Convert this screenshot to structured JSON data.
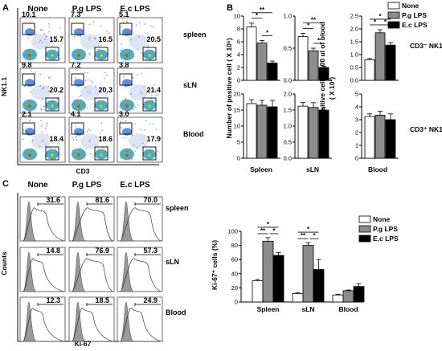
{
  "panel_labels": {
    "a": "A",
    "b": "B",
    "c": "C"
  },
  "panelA": {
    "columns": [
      "None",
      "P.g LPS",
      "E.c LPS"
    ],
    "rows": [
      "spleen",
      "sLN",
      "Blood"
    ],
    "ylabel": "NK1.1",
    "xlabel": "CD3",
    "values": [
      [
        {
          "tl": "10.1",
          "br": "15.7"
        },
        {
          "tl": "7.3",
          "br": "16.5"
        },
        {
          "tl": "5.1",
          "br": "20.5"
        }
      ],
      [
        {
          "tl": "9.8",
          "br": "20.2"
        },
        {
          "tl": "7.2",
          "br": "20.3"
        },
        {
          "tl": "3.8",
          "br": "21.4"
        }
      ],
      [
        {
          "tl": "2.1",
          "br": "18.4"
        },
        {
          "tl": "4.1",
          "br": "18.6"
        },
        {
          "tl": "3.0",
          "br": "17.9"
        }
      ]
    ]
  },
  "panelC_hist": {
    "columns": [
      "None",
      "P.g LPS",
      "E.c LPS"
    ],
    "rows": [
      "spleen",
      "sLN",
      "Blood"
    ],
    "ylabel": "Counts",
    "xlabel": "Ki-67",
    "values": [
      [
        "31.6",
        "81.6",
        "70.0"
      ],
      [
        "14.8",
        "76.9",
        "57.3"
      ],
      [
        "12.3",
        "18.5",
        "24.9"
      ]
    ]
  },
  "legend": [
    "None",
    "P.g LPS",
    "E.c LPS"
  ],
  "colors": {
    "None": "#ffffff",
    "P.g LPS": "#8c8c8c",
    "E.c LPS": "#000000"
  },
  "chart_data": [
    {
      "type": "bar",
      "group": "B-top",
      "tissue": "Spleen",
      "ylabel": "Number of positive cell ( X 10⁶)",
      "ylim": [
        0,
        10
      ],
      "yticks": [
        "0",
        "2",
        "4",
        "6",
        "8",
        "10"
      ],
      "values": [
        8.3,
        5.8,
        2.7
      ],
      "errors": [
        0.6,
        0.4,
        0.3
      ],
      "significance": [
        "*",
        "*",
        "**"
      ]
    },
    {
      "type": "bar",
      "group": "B-top",
      "tissue": "sLN",
      "ylim": [
        0,
        1.0
      ],
      "yticks": [
        "0.0",
        "0.5",
        "1.0"
      ],
      "values": [
        0.68,
        0.46,
        0.2
      ],
      "errors": [
        0.05,
        0.04,
        0.02
      ],
      "significance": [
        "*",
        "*",
        "**"
      ]
    },
    {
      "type": "bar",
      "group": "B-top",
      "tissue": "Blood",
      "ylabel": "Number of positive cell in 100 ul of blood",
      "ylabel2": "( X 10³)",
      "ylim": [
        0,
        2.5
      ],
      "yticks": [
        "0.0",
        "0.5",
        "1.0",
        "1.5",
        "2.0",
        "2.5"
      ],
      "values": [
        0.8,
        1.85,
        1.37
      ],
      "errors": [
        0.05,
        0.12,
        0.1
      ],
      "significance": [
        "*",
        "*",
        "*"
      ],
      "annotation": "CD3⁻ NK1.1⁺"
    },
    {
      "type": "bar",
      "group": "B-bottom",
      "tissue": "Spleen",
      "ylim": [
        0,
        20
      ],
      "yticks": [
        "0",
        "5",
        "10",
        "15",
        "20"
      ],
      "values": [
        17.0,
        16.5,
        16.0
      ],
      "errors": [
        1.2,
        1.5,
        2.0
      ]
    },
    {
      "type": "bar",
      "group": "B-bottom",
      "tissue": "sLN",
      "ylim": [
        0,
        2.0
      ],
      "yticks": [
        "0.0",
        "0.5",
        "1.0",
        "1.5",
        "2.0"
      ],
      "values": [
        1.62,
        1.58,
        1.5
      ],
      "errors": [
        0.12,
        0.15,
        0.08
      ]
    },
    {
      "type": "bar",
      "group": "B-bottom",
      "tissue": "Blood",
      "ylim": [
        0,
        5
      ],
      "yticks": [
        "0",
        "1",
        "2",
        "3",
        "4",
        "5"
      ],
      "values": [
        3.25,
        3.35,
        3.0
      ],
      "errors": [
        0.2,
        0.3,
        0.45
      ],
      "annotation": "CD3⁺ NK1.1⁻"
    },
    {
      "type": "bar",
      "group": "C",
      "ylabel": "Ki-67⁺ cells (%)",
      "ylim": [
        0,
        100
      ],
      "yticks": [
        "0",
        "20",
        "40",
        "60",
        "80",
        "100"
      ],
      "categories": [
        "Spleen",
        "sLN",
        "Blood"
      ],
      "series": [
        {
          "name": "None",
          "values": [
            30,
            12,
            10
          ],
          "errors": [
            2,
            1,
            1
          ]
        },
        {
          "name": "P.g LPS",
          "values": [
            86,
            80,
            16
          ],
          "errors": [
            5,
            4,
            1
          ]
        },
        {
          "name": "E.c LPS",
          "values": [
            66,
            46,
            22
          ],
          "errors": [
            4,
            14,
            4
          ]
        }
      ],
      "significance": [
        "**",
        "*",
        "*",
        "**",
        "*",
        "*"
      ]
    }
  ]
}
